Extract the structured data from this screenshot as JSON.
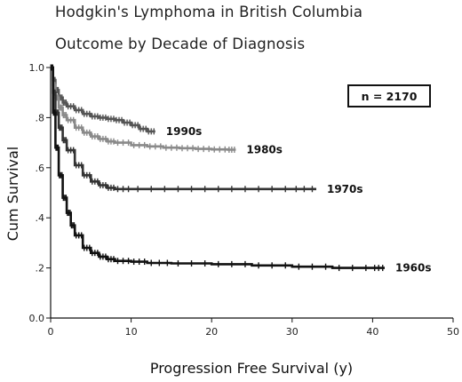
{
  "chart_data": {
    "type": "line",
    "title": "Hodgkin's Lymphoma in British Columbia",
    "subtitle": "Outcome by Decade of Diagnosis",
    "xlabel": "Progression Free Survival (y)",
    "ylabel": "Cum Survival",
    "xlim": [
      0,
      50
    ],
    "ylim": [
      0,
      1
    ],
    "x_ticks": [
      0,
      10,
      20,
      30,
      40,
      50
    ],
    "y_ticks": [
      {
        "v": 0,
        "label": "0.0"
      },
      {
        "v": 0.2,
        "label": ".2"
      },
      {
        "v": 0.4,
        "label": ".4"
      },
      {
        "v": 0.6,
        "label": ".6"
      },
      {
        "v": 0.8,
        "label": ".8"
      },
      {
        "v": 1.0,
        "label": "1.0"
      }
    ],
    "annotation": "n = 2170",
    "grid": false,
    "legend": "labels at line ends",
    "series": [
      {
        "name": "1990s",
        "color": "#555555",
        "x": [
          0,
          0.3,
          0.6,
          1,
          1.5,
          2,
          3,
          4,
          5,
          6,
          7,
          8,
          9,
          10,
          11,
          12,
          13
        ],
        "y": [
          1.0,
          0.95,
          0.91,
          0.88,
          0.86,
          0.845,
          0.83,
          0.815,
          0.805,
          0.8,
          0.795,
          0.79,
          0.78,
          0.77,
          0.755,
          0.745,
          0.745
        ]
      },
      {
        "name": "1980s",
        "color": "#8a8a8a",
        "x": [
          0,
          0.3,
          0.6,
          1,
          1.5,
          2,
          3,
          4,
          5,
          6,
          7,
          8,
          10,
          12,
          14,
          16,
          18,
          20,
          22,
          23
        ],
        "y": [
          1.0,
          0.93,
          0.88,
          0.84,
          0.81,
          0.79,
          0.76,
          0.74,
          0.725,
          0.715,
          0.705,
          0.7,
          0.69,
          0.685,
          0.68,
          0.678,
          0.675,
          0.673,
          0.672,
          0.672
        ]
      },
      {
        "name": "1970s",
        "color": "#333333",
        "x": [
          0,
          0.3,
          0.6,
          1,
          1.5,
          2,
          3,
          4,
          5,
          6,
          7,
          8,
          10,
          15,
          20,
          25,
          30,
          33
        ],
        "y": [
          1.0,
          0.9,
          0.82,
          0.76,
          0.71,
          0.67,
          0.61,
          0.57,
          0.545,
          0.53,
          0.52,
          0.515,
          0.515,
          0.515,
          0.515,
          0.515,
          0.515,
          0.515
        ]
      },
      {
        "name": "1960s",
        "color": "#111111",
        "x": [
          0,
          0.3,
          0.6,
          1,
          1.5,
          2,
          2.5,
          3,
          4,
          5,
          6,
          7,
          8,
          10,
          12,
          15,
          20,
          25,
          30,
          35,
          40,
          41.5
        ],
        "y": [
          1.0,
          0.82,
          0.68,
          0.57,
          0.48,
          0.42,
          0.37,
          0.33,
          0.28,
          0.26,
          0.245,
          0.235,
          0.228,
          0.225,
          0.22,
          0.218,
          0.215,
          0.21,
          0.205,
          0.2,
          0.2,
          0.2
        ]
      }
    ]
  }
}
